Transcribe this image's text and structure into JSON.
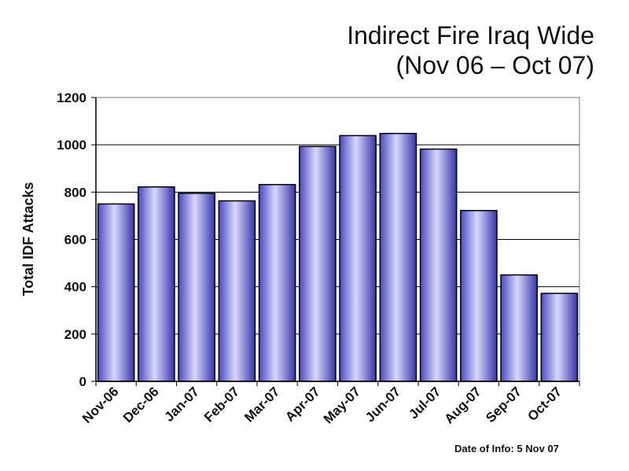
{
  "chart_data": {
    "type": "bar",
    "title": "Indirect Fire Iraq Wide",
    "subtitle": "(Nov 06 – Oct 07)",
    "xlabel": "",
    "ylabel": "Total IDF Attacks",
    "categories": [
      "Nov-06",
      "Dec-06",
      "Jan-07",
      "Feb-07",
      "Mar-07",
      "Apr-07",
      "May-07",
      "Jun-07",
      "Jul-07",
      "Aug-07",
      "Sep-07",
      "Oct-07"
    ],
    "values": [
      750,
      822,
      795,
      763,
      832,
      993,
      1039,
      1048,
      982,
      722,
      450,
      372
    ],
    "ylim": [
      0,
      1200
    ],
    "yticks": [
      0,
      200,
      400,
      600,
      800,
      1000,
      1200
    ],
    "grid": true,
    "legend": "none",
    "colors": {
      "bar_light": "#d9d9ff",
      "bar_mid": "#9999ee",
      "bar_dark": "#3a3ab0",
      "outline": "#000000"
    }
  },
  "note": "Date of Info: 5 Nov 07"
}
